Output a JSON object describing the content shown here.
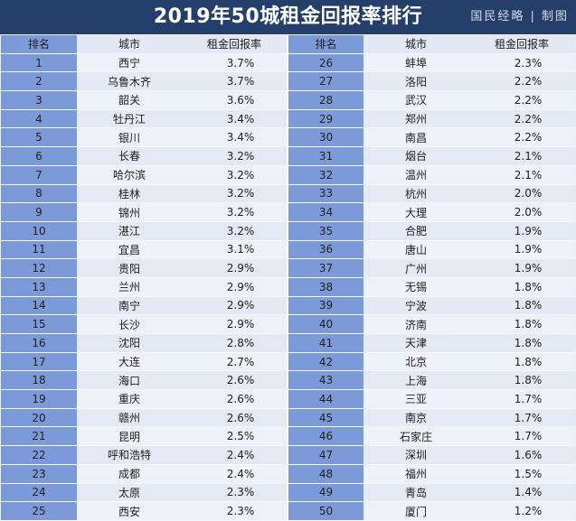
{
  "title": "2019年50城租金回报率排行",
  "brand": "国民经略 | 制图",
  "columns": [
    "排名",
    "城市",
    "租金回报率"
  ],
  "rows_left": [
    {
      "rank": "1",
      "city": "西宁",
      "rate": "3.7%"
    },
    {
      "rank": "2",
      "city": "乌鲁木齐",
      "rate": "3.7%"
    },
    {
      "rank": "3",
      "city": "韶关",
      "rate": "3.6%"
    },
    {
      "rank": "4",
      "city": "牡丹江",
      "rate": "3.4%"
    },
    {
      "rank": "5",
      "city": "银川",
      "rate": "3.4%"
    },
    {
      "rank": "6",
      "city": "长春",
      "rate": "3.2%"
    },
    {
      "rank": "7",
      "city": "哈尔滨",
      "rate": "3.2%"
    },
    {
      "rank": "8",
      "city": "桂林",
      "rate": "3.2%"
    },
    {
      "rank": "9",
      "city": "锦州",
      "rate": "3.2%"
    },
    {
      "rank": "10",
      "city": "湛江",
      "rate": "3.2%"
    },
    {
      "rank": "11",
      "city": "宜昌",
      "rate": "3.1%"
    },
    {
      "rank": "12",
      "city": "贵阳",
      "rate": "2.9%"
    },
    {
      "rank": "13",
      "city": "兰州",
      "rate": "2.9%"
    },
    {
      "rank": "14",
      "city": "南宁",
      "rate": "2.9%"
    },
    {
      "rank": "15",
      "city": "长沙",
      "rate": "2.9%"
    },
    {
      "rank": "16",
      "city": "沈阳",
      "rate": "2.8%"
    },
    {
      "rank": "17",
      "city": "大连",
      "rate": "2.7%"
    },
    {
      "rank": "18",
      "city": "海口",
      "rate": "2.6%"
    },
    {
      "rank": "19",
      "city": "重庆",
      "rate": "2.6%"
    },
    {
      "rank": "20",
      "city": "赣州",
      "rate": "2.6%"
    },
    {
      "rank": "21",
      "city": "昆明",
      "rate": "2.5%"
    },
    {
      "rank": "22",
      "city": "呼和浩特",
      "rate": "2.4%"
    },
    {
      "rank": "23",
      "city": "成都",
      "rate": "2.4%"
    },
    {
      "rank": "24",
      "city": "太原",
      "rate": "2.3%"
    },
    {
      "rank": "25",
      "city": "西安",
      "rate": "2.3%"
    }
  ],
  "rows_right": [
    {
      "rank": "26",
      "city": "蚌埠",
      "rate": "2.3%"
    },
    {
      "rank": "27",
      "city": "洛阳",
      "rate": "2.2%"
    },
    {
      "rank": "28",
      "city": "武汉",
      "rate": "2.2%"
    },
    {
      "rank": "29",
      "city": "郑州",
      "rate": "2.2%"
    },
    {
      "rank": "30",
      "city": "南昌",
      "rate": "2.2%"
    },
    {
      "rank": "31",
      "city": "烟台",
      "rate": "2.1%"
    },
    {
      "rank": "32",
      "city": "温州",
      "rate": "2.1%"
    },
    {
      "rank": "33",
      "city": "杭州",
      "rate": "2.0%"
    },
    {
      "rank": "34",
      "city": "大理",
      "rate": "2.0%"
    },
    {
      "rank": "35",
      "city": "合肥",
      "rate": "1.9%"
    },
    {
      "rank": "36",
      "city": "唐山",
      "rate": "1.9%"
    },
    {
      "rank": "37",
      "city": "广州",
      "rate": "1.9%"
    },
    {
      "rank": "38",
      "city": "无锡",
      "rate": "1.8%"
    },
    {
      "rank": "39",
      "city": "宁波",
      "rate": "1.8%"
    },
    {
      "rank": "40",
      "city": "济南",
      "rate": "1.8%"
    },
    {
      "rank": "41",
      "city": "天津",
      "rate": "1.8%"
    },
    {
      "rank": "42",
      "city": "北京",
      "rate": "1.8%"
    },
    {
      "rank": "43",
      "city": "上海",
      "rate": "1.8%"
    },
    {
      "rank": "44",
      "city": "三亚",
      "rate": "1.7%"
    },
    {
      "rank": "45",
      "city": "南京",
      "rate": "1.7%"
    },
    {
      "rank": "46",
      "city": "石家庄",
      "rate": "1.7%"
    },
    {
      "rank": "47",
      "city": "深圳",
      "rate": "1.6%"
    },
    {
      "rank": "48",
      "city": "福州",
      "rate": "1.5%"
    },
    {
      "rank": "49",
      "city": "青岛",
      "rate": "1.4%"
    },
    {
      "rank": "50",
      "city": "厦门",
      "rate": "1.2%"
    }
  ]
}
